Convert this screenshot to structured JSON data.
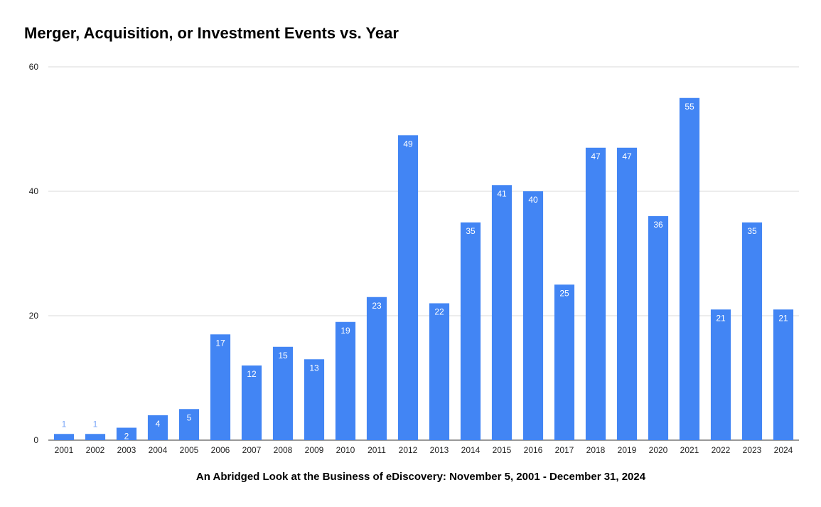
{
  "chart_data": {
    "type": "bar",
    "title": "Merger, Acquisition, or Investment Events vs. Year",
    "subtitle": "An Abridged Look at the Business of eDiscovery: November 5, 2001 - December 31, 2024",
    "categories": [
      "2001",
      "2002",
      "2003",
      "2004",
      "2005",
      "2006",
      "2007",
      "2008",
      "2009",
      "2010",
      "2011",
      "2012",
      "2013",
      "2014",
      "2015",
      "2016",
      "2017",
      "2018",
      "2019",
      "2020",
      "2021",
      "2022",
      "2023",
      "2024"
    ],
    "values": [
      1,
      1,
      2,
      4,
      5,
      17,
      12,
      15,
      13,
      19,
      23,
      49,
      22,
      35,
      41,
      40,
      25,
      47,
      47,
      36,
      55,
      21,
      35,
      21
    ],
    "ylim": [
      0,
      60
    ],
    "yticks": [
      0,
      20,
      40,
      60
    ],
    "grid": true,
    "legend": "none",
    "bar_color": "#4285F4",
    "label_color_inside": "#ffffff",
    "label_color_outside": "#7aa6f7"
  }
}
